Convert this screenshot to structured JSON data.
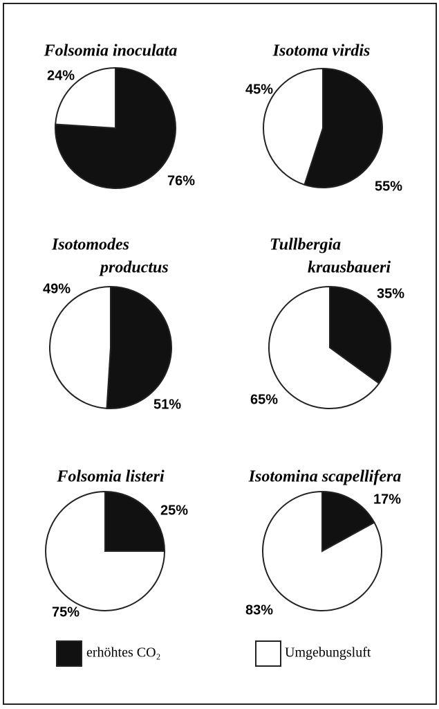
{
  "chart_data": [
    {
      "type": "pie",
      "title": [
        "Folsomia inoculata"
      ],
      "values": [
        76,
        24
      ],
      "value_labels": [
        "76%",
        "24%"
      ]
    },
    {
      "type": "pie",
      "title": [
        "Isotoma virdis"
      ],
      "values": [
        55,
        45
      ],
      "value_labels": [
        "55%",
        "45%"
      ]
    },
    {
      "type": "pie",
      "title": [
        "Isotomodes",
        "productus"
      ],
      "values": [
        51,
        49
      ],
      "value_labels": [
        "51%",
        "49%"
      ]
    },
    {
      "type": "pie",
      "title": [
        "Tullbergia",
        "krausbaueri"
      ],
      "values": [
        35,
        65
      ],
      "value_labels": [
        "35%",
        "65%"
      ]
    },
    {
      "type": "pie",
      "title": [
        "Folsomia listeri"
      ],
      "values": [
        25,
        75
      ],
      "value_labels": [
        "25%",
        "75%"
      ]
    },
    {
      "type": "pie",
      "title": [
        "Isotomina scapellifera"
      ],
      "values": [
        17,
        83
      ],
      "value_labels": [
        "17%",
        "83%"
      ]
    }
  ],
  "legend": [
    {
      "name": "erhöhtes CO₂",
      "color": "#111111"
    },
    {
      "name": "Umgebungsluft",
      "color": "#ffffff"
    }
  ]
}
